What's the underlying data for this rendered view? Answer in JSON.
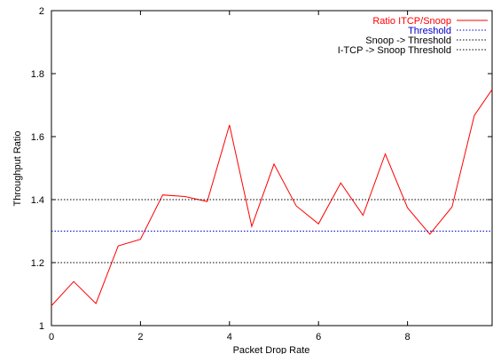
{
  "chart_data": {
    "type": "line",
    "xlabel": "Packet Drop Rate",
    "ylabel": "Throughput Ratio",
    "xlim": [
      0,
      9.9
    ],
    "ylim": [
      1,
      2
    ],
    "xticks": [
      0,
      2,
      4,
      6,
      8
    ],
    "yticks": [
      1,
      1.2,
      1.4,
      1.6,
      1.8,
      2
    ],
    "xtick_labels": [
      "0",
      "2",
      "4",
      "6",
      "8"
    ],
    "ytick_labels": [
      "1",
      "1.2",
      "1.4",
      "1.6",
      "1.8",
      "2"
    ],
    "grid": false,
    "legend_position": "top-right",
    "series": [
      {
        "name": "Ratio ITCP/Snoop",
        "color": "#ff0000",
        "style": "solid",
        "x": [
          0,
          0.5,
          1,
          1.5,
          2,
          2.5,
          3,
          3.5,
          4,
          4.5,
          5,
          5.5,
          6,
          6.5,
          7,
          7.5,
          8,
          8.5,
          9,
          9.5,
          9.9
        ],
        "y": [
          1.063,
          1.14,
          1.07,
          1.253,
          1.274,
          1.415,
          1.41,
          1.394,
          1.637,
          1.315,
          1.513,
          1.38,
          1.323,
          1.453,
          1.35,
          1.545,
          1.374,
          1.29,
          1.377,
          1.667,
          1.75
        ]
      },
      {
        "name": "Threshold",
        "color": "#0000cc",
        "style": "dotted",
        "x": [
          0,
          9.9
        ],
        "y": [
          1.3,
          1.3
        ]
      },
      {
        "name": "Snoop -> Threshold",
        "color": "#000000",
        "style": "dotted",
        "x": [
          0,
          9.9
        ],
        "y": [
          1.2,
          1.2
        ]
      },
      {
        "name": "I-TCP -> Snoop Threshold",
        "color": "#000000",
        "style": "dotted",
        "x": [
          0,
          9.9
        ],
        "y": [
          1.4,
          1.4
        ]
      }
    ]
  }
}
